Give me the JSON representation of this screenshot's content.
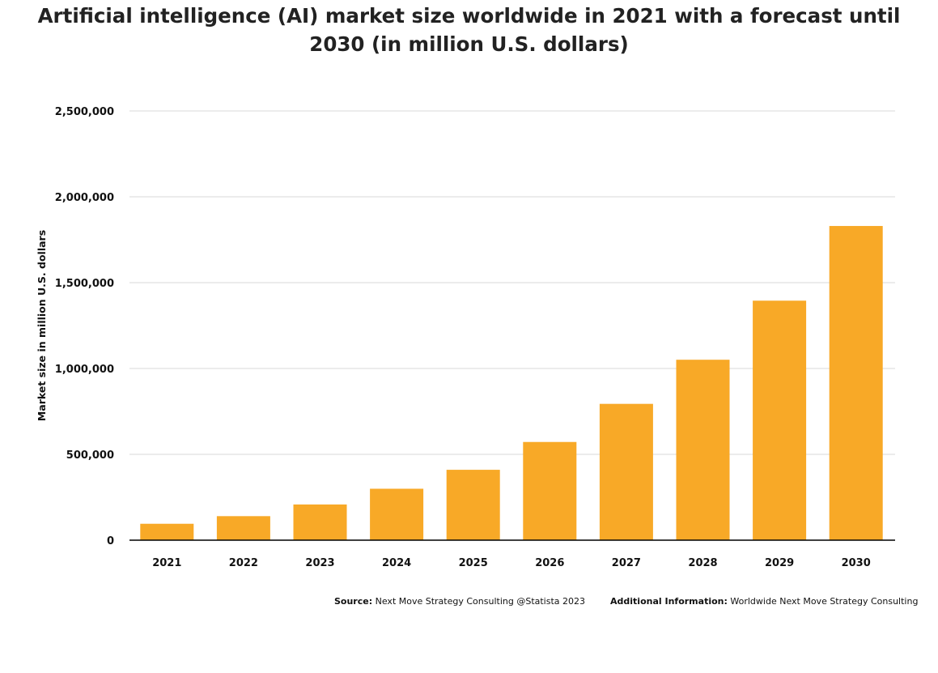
{
  "title_line1": "Artificial intelligence (AI) market size worldwide in 2021 with a forecast until",
  "title_line2": "2030 (in million U.S. dollars)",
  "footer": {
    "source_label": "Source:",
    "source_text": "Next Move Strategy Consulting @Statista 2023",
    "info_label": "Additional Information:",
    "info_text": "Worldwide Next Move Strategy Consulting"
  },
  "colors": {
    "bar": "#F8A927",
    "grid": "#d9d9d9",
    "axis": "#000000"
  },
  "chart_data": {
    "type": "bar",
    "title": "Artificial intelligence (AI) market size worldwide in 2021 with a forecast until 2030 (in million U.S. dollars)",
    "xlabel": "",
    "ylabel": "Market size in million U.S. dollars",
    "categories": [
      "2021",
      "2022",
      "2023",
      "2024",
      "2025",
      "2026",
      "2027",
      "2028",
      "2029",
      "2030"
    ],
    "values": [
      95600,
      140000,
      208000,
      299600,
      410000,
      572000,
      794000,
      1051000,
      1395000,
      1830000
    ],
    "ylim": [
      0,
      2500000
    ],
    "yticks": [
      0,
      500000,
      1000000,
      1500000,
      2000000,
      2500000
    ],
    "ytick_labels": [
      "0",
      "500,000",
      "1,000,000",
      "1,500,000",
      "2,000,000",
      "2,500,000"
    ],
    "grid": true,
    "legend": "none"
  }
}
